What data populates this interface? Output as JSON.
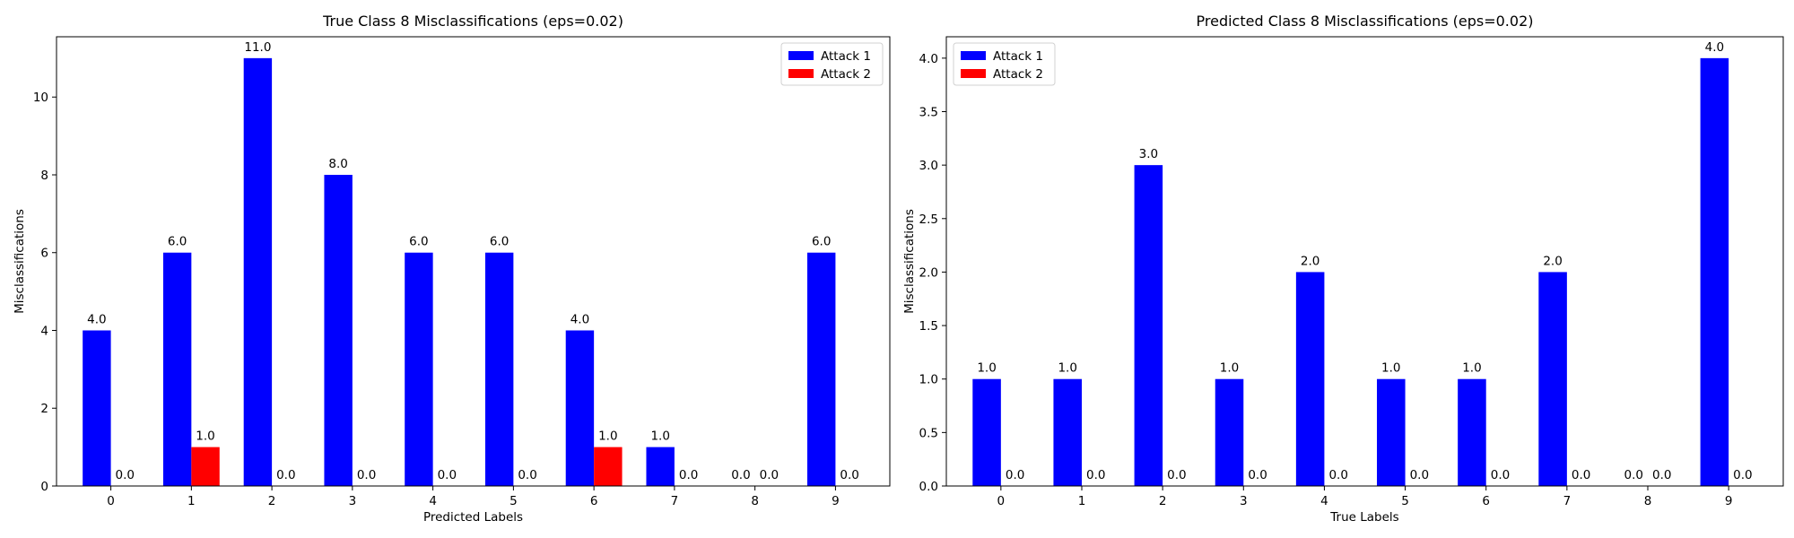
{
  "chart_data": [
    {
      "type": "bar",
      "title": "True Class 8 Misclassifications (eps=0.02)",
      "xlabel": "Predicted Labels",
      "ylabel": "Misclassifications",
      "categories": [
        "0",
        "1",
        "2",
        "3",
        "4",
        "5",
        "6",
        "7",
        "8",
        "9"
      ],
      "series": [
        {
          "name": "Attack 1",
          "color": "#0000ff",
          "values": [
            4,
            6,
            11,
            8,
            6,
            6,
            4,
            1,
            0,
            6
          ]
        },
        {
          "name": "Attack 2",
          "color": "#ff0000",
          "values": [
            0,
            1,
            0,
            0,
            0,
            0,
            1,
            0,
            0,
            0
          ]
        }
      ],
      "ylim": [
        0,
        11.55
      ],
      "yticks": [
        0,
        2,
        4,
        6,
        8,
        10
      ],
      "ytick_labels": [
        "0",
        "2",
        "4",
        "6",
        "8",
        "10"
      ],
      "data_labels": true,
      "grid": false,
      "legend": "top-right"
    },
    {
      "type": "bar",
      "title": "Predicted Class 8 Misclassifications (eps=0.02)",
      "xlabel": "True Labels",
      "ylabel": "Misclassifications",
      "categories": [
        "0",
        "1",
        "2",
        "3",
        "4",
        "5",
        "6",
        "7",
        "8",
        "9"
      ],
      "series": [
        {
          "name": "Attack 1",
          "color": "#0000ff",
          "values": [
            1,
            1,
            3,
            1,
            2,
            1,
            1,
            2,
            0,
            4
          ]
        },
        {
          "name": "Attack 2",
          "color": "#ff0000",
          "values": [
            0,
            0,
            0,
            0,
            0,
            0,
            0,
            0,
            0,
            0
          ]
        }
      ],
      "ylim": [
        0,
        4.2
      ],
      "yticks": [
        0,
        0.5,
        1,
        1.5,
        2,
        2.5,
        3,
        3.5,
        4
      ],
      "ytick_labels": [
        "0.0",
        "0.5",
        "1.0",
        "1.5",
        "2.0",
        "2.5",
        "3.0",
        "3.5",
        "4.0"
      ],
      "data_labels": true,
      "grid": false,
      "legend": "top-left"
    }
  ]
}
